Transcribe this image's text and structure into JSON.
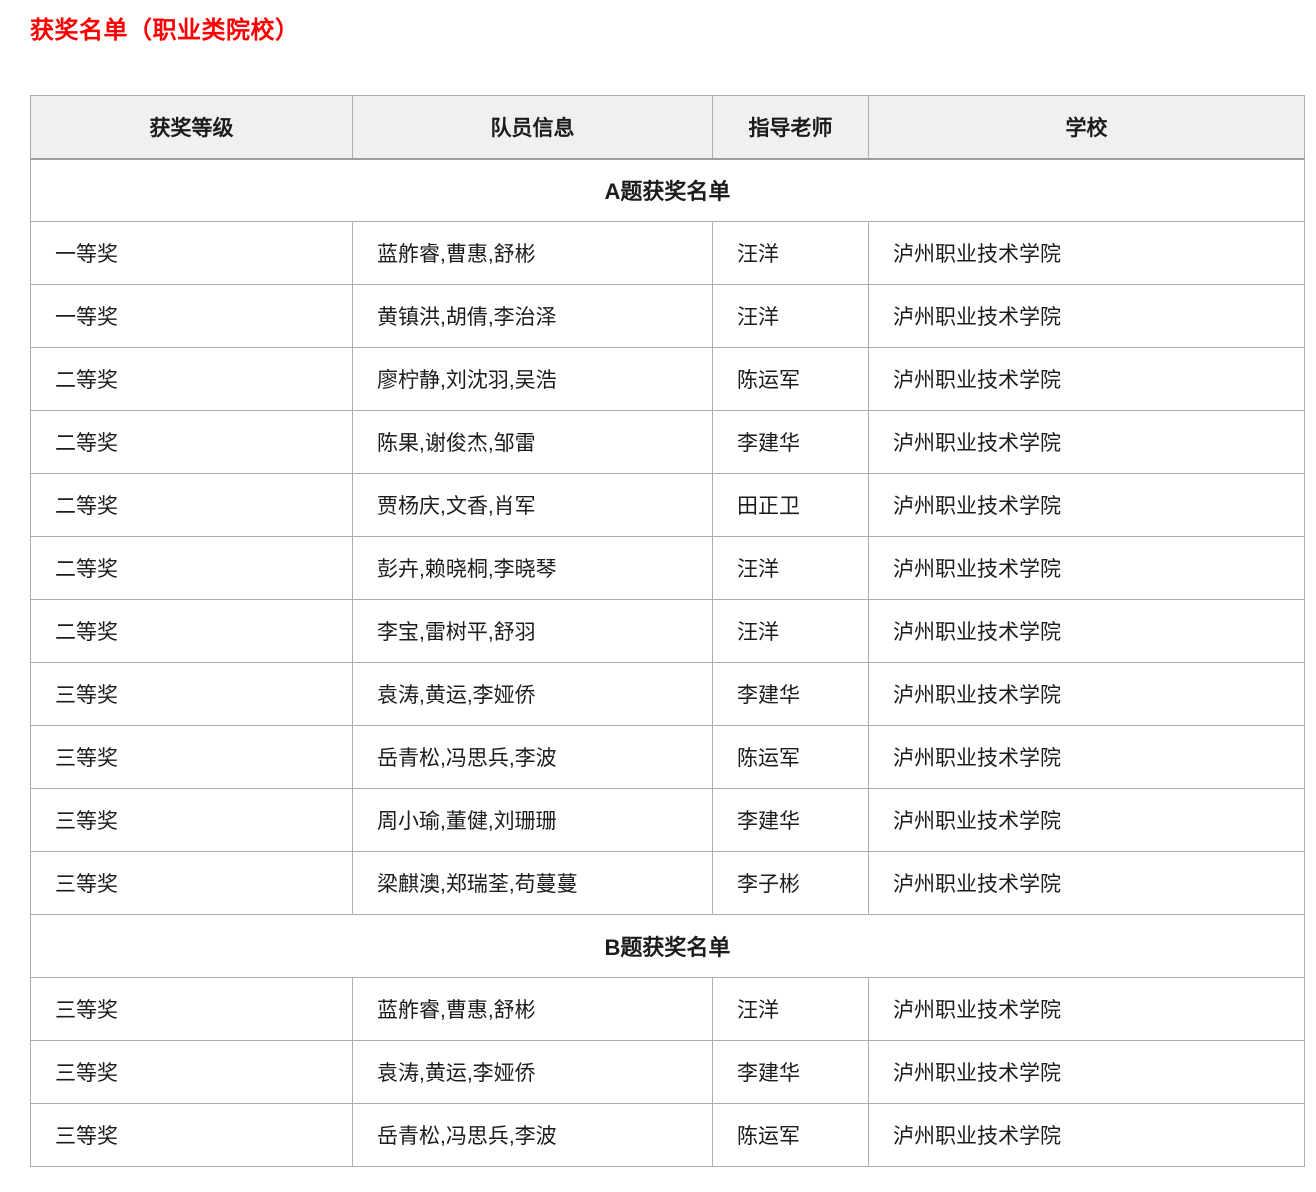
{
  "title": "获奖名单（职业类院校）",
  "table": {
    "headers": [
      "获奖等级",
      "队员信息",
      "指导老师",
      "学校"
    ],
    "sections": [
      {
        "label": "A题获奖名单",
        "rows": [
          {
            "level": "一等奖",
            "members": "蓝舴睿,曹惠,舒彬",
            "teacher": "汪洋",
            "school": "泸州职业技术学院"
          },
          {
            "level": "一等奖",
            "members": "黄镇洪,胡倩,李治泽",
            "teacher": "汪洋",
            "school": "泸州职业技术学院"
          },
          {
            "level": "二等奖",
            "members": "廖柠静,刘沈羽,吴浩",
            "teacher": "陈运军",
            "school": "泸州职业技术学院"
          },
          {
            "level": "二等奖",
            "members": "陈果,谢俊杰,邹雷",
            "teacher": "李建华",
            "school": "泸州职业技术学院"
          },
          {
            "level": "二等奖",
            "members": "贾杨庆,文香,肖军",
            "teacher": "田正卫",
            "school": "泸州职业技术学院"
          },
          {
            "level": "二等奖",
            "members": "彭卉,赖晓桐,李晓琴",
            "teacher": "汪洋",
            "school": "泸州职业技术学院"
          },
          {
            "level": "二等奖",
            "members": "李宝,雷树平,舒羽",
            "teacher": "汪洋",
            "school": "泸州职业技术学院"
          },
          {
            "level": "三等奖",
            "members": "袁涛,黄运,李娅侨",
            "teacher": "李建华",
            "school": "泸州职业技术学院"
          },
          {
            "level": "三等奖",
            "members": "岳青松,冯思兵,李波",
            "teacher": "陈运军",
            "school": "泸州职业技术学院"
          },
          {
            "level": "三等奖",
            "members": "周小瑜,董健,刘珊珊",
            "teacher": "李建华",
            "school": "泸州职业技术学院"
          },
          {
            "level": "三等奖",
            "members": "梁麒澳,郑瑞荃,苟蔓蔓",
            "teacher": "李子彬",
            "school": "泸州职业技术学院"
          }
        ]
      },
      {
        "label": "B题获奖名单",
        "rows": [
          {
            "level": "三等奖",
            "members": "蓝舴睿,曹惠,舒彬",
            "teacher": "汪洋",
            "school": "泸州职业技术学院"
          },
          {
            "level": "三等奖",
            "members": "袁涛,黄运,李娅侨",
            "teacher": "李建华",
            "school": "泸州职业技术学院"
          },
          {
            "level": "三等奖",
            "members": "岳青松,冯思兵,李波",
            "teacher": "陈运军",
            "school": "泸州职业技术学院"
          }
        ]
      }
    ]
  },
  "colors": {
    "title_red": "#fe0000",
    "header_bg": "#f0f0f0",
    "border_gray": "#adadad",
    "text": "#1c1c1c"
  }
}
